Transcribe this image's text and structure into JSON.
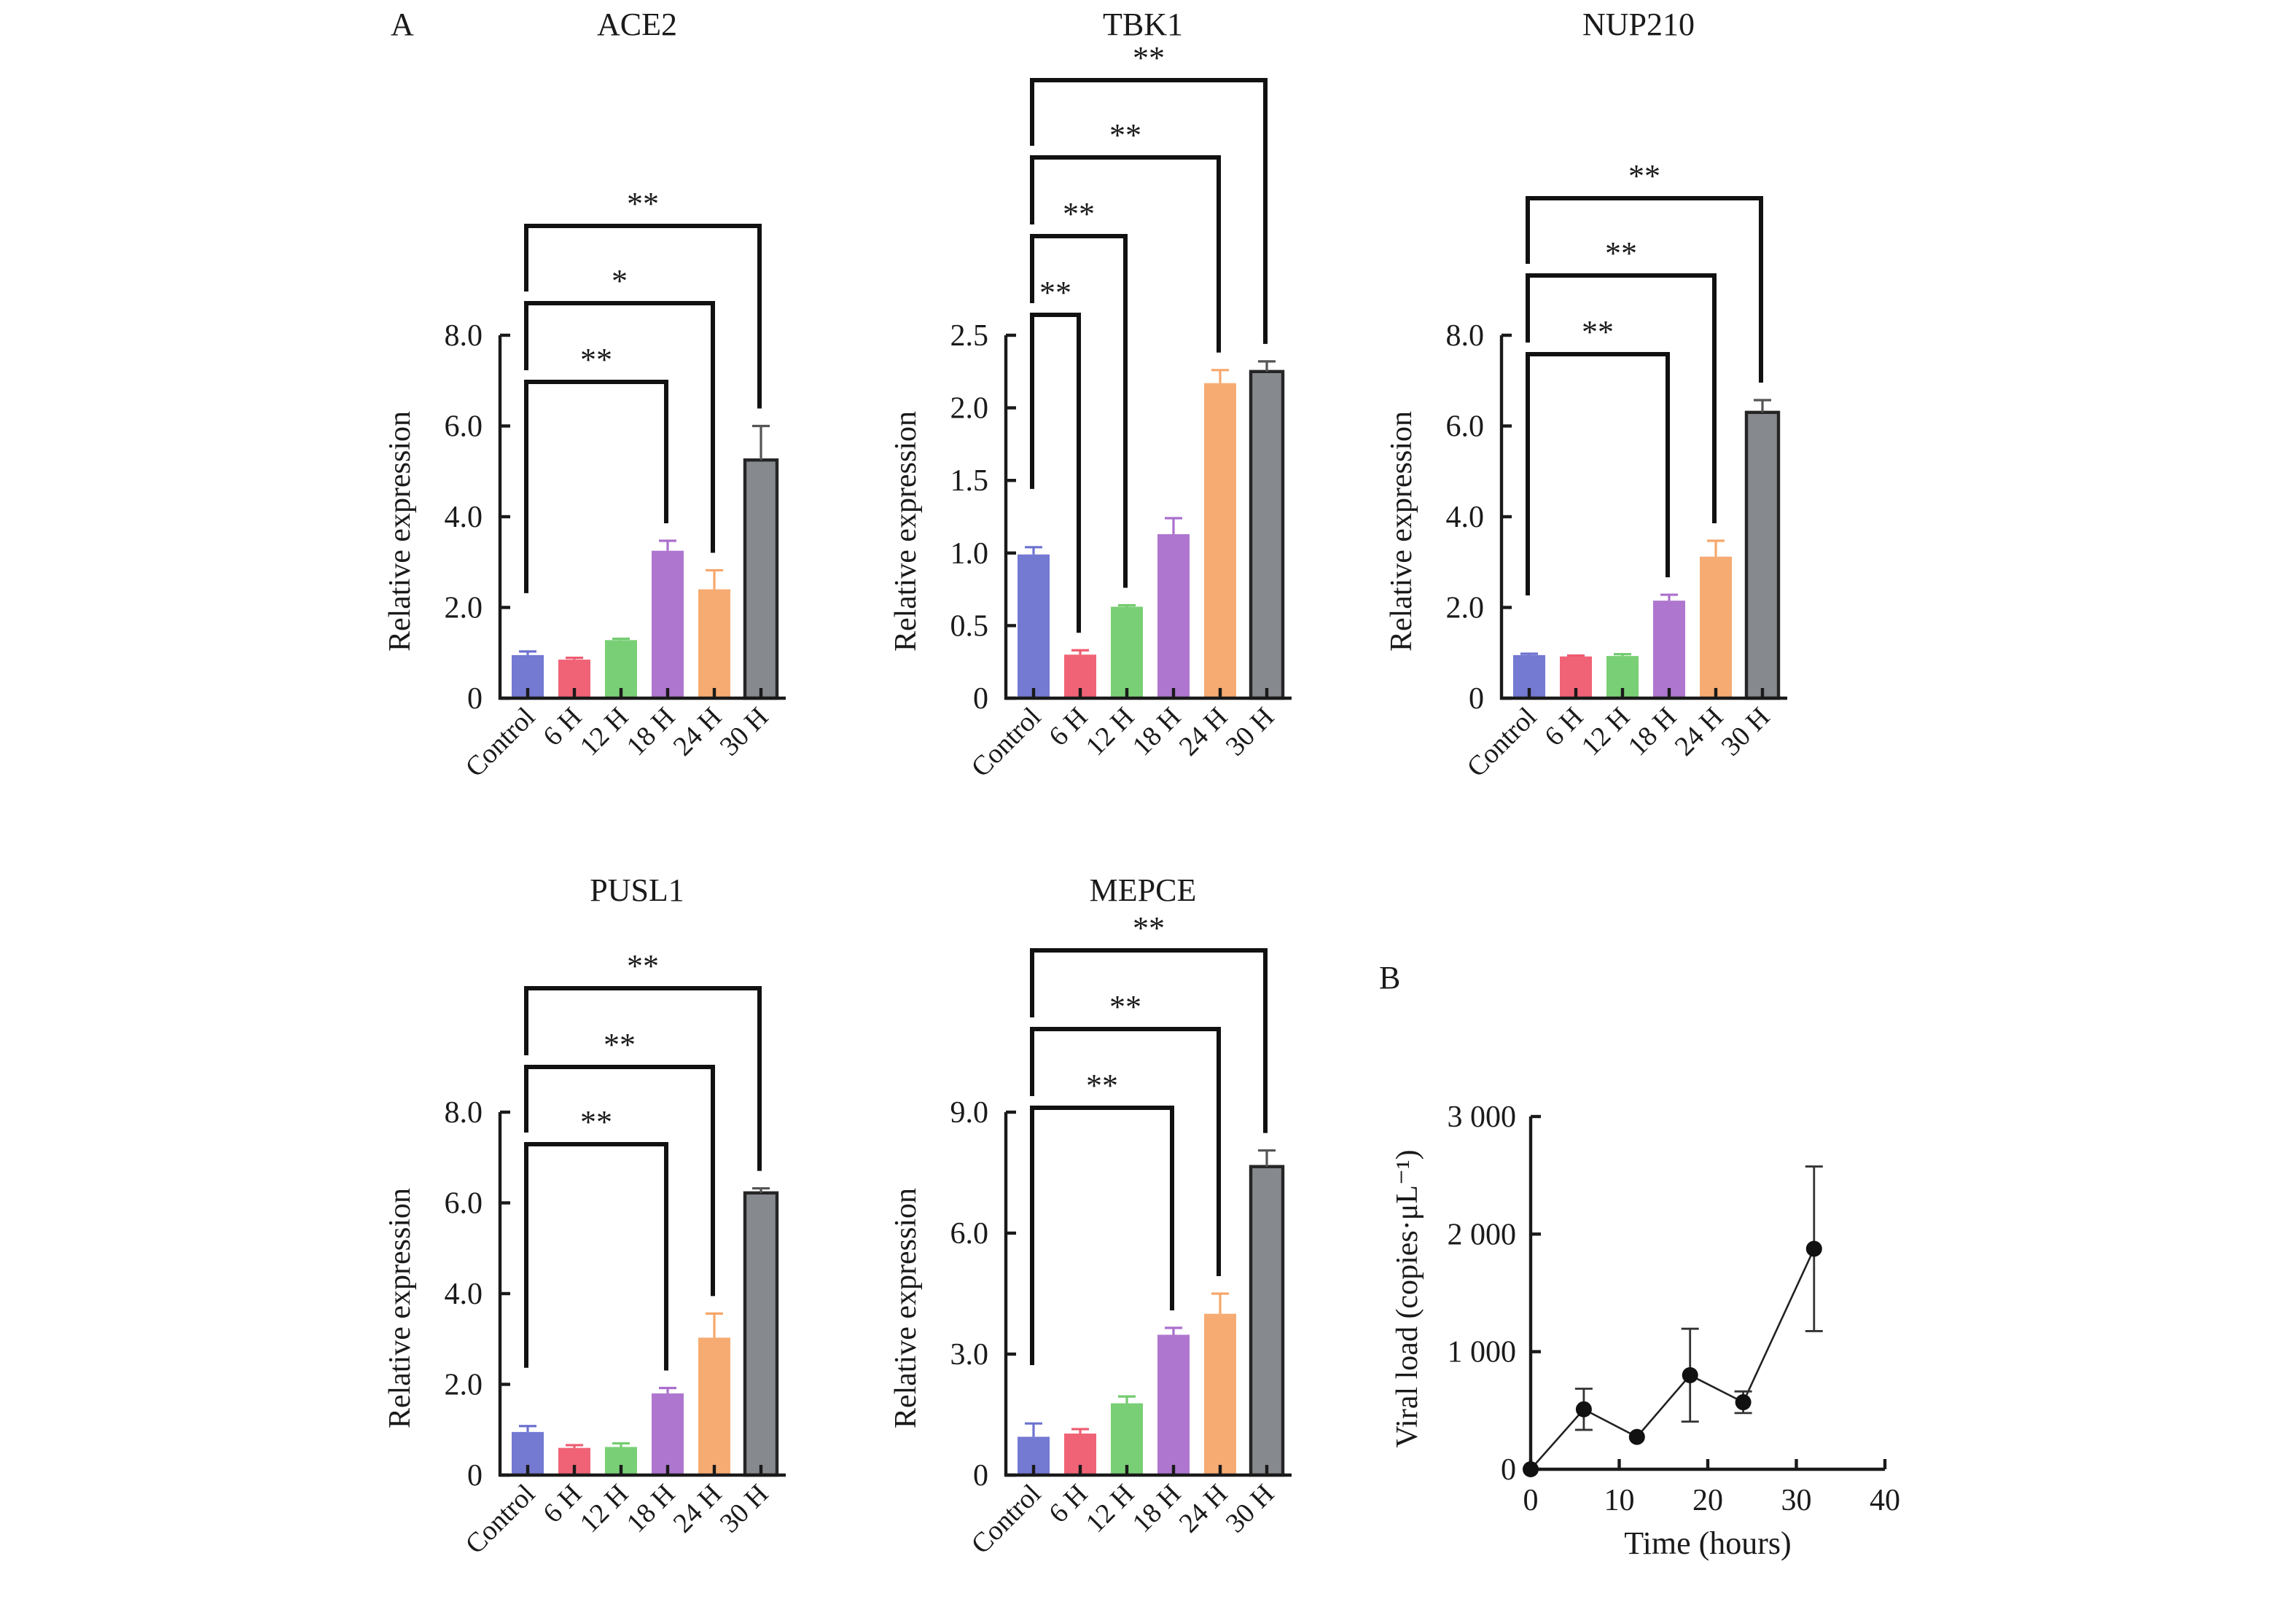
{
  "chart_data": [
    {
      "type": "bar",
      "panel": "A",
      "title": "ACE2",
      "ylabel": "Relative expression",
      "xlabel": "",
      "categories": [
        "Control",
        "6 H",
        "12 H",
        "18 H",
        "24 H",
        "30 H"
      ],
      "values": [
        0.95,
        0.85,
        1.28,
        3.25,
        2.4,
        5.25
      ],
      "errors": [
        0.08,
        0.04,
        0.03,
        0.22,
        0.42,
        0.75
      ],
      "ylim": [
        0,
        8.0
      ],
      "yticks": [
        "0",
        "2.0",
        "4.0",
        "6.0",
        "8.0"
      ],
      "ytick_values": [
        0,
        2,
        4,
        6,
        8
      ],
      "significance": [
        {
          "from": "Control",
          "to": "18 H",
          "label": "**"
        },
        {
          "from": "Control",
          "to": "24 H",
          "label": "*"
        },
        {
          "from": "Control",
          "to": "30 H",
          "label": "**"
        }
      ]
    },
    {
      "type": "bar",
      "title": "TBK1",
      "ylabel": "Relative expression",
      "xlabel": "",
      "categories": [
        "Control",
        "6 H",
        "12 H",
        "18 H",
        "24 H",
        "30 H"
      ],
      "values": [
        0.99,
        0.3,
        0.63,
        1.13,
        2.17,
        2.25
      ],
      "errors": [
        0.05,
        0.03,
        0.01,
        0.11,
        0.09,
        0.07
      ],
      "ylim": [
        0,
        2.5
      ],
      "yticks": [
        "0",
        "0.5",
        "1.0",
        "1.5",
        "2.0",
        "2.5"
      ],
      "ytick_values": [
        0,
        0.5,
        1.0,
        1.5,
        2.0,
        2.5
      ],
      "significance": [
        {
          "from": "Control",
          "to": "6 H",
          "label": "**"
        },
        {
          "from": "Control",
          "to": "12 H",
          "label": "**"
        },
        {
          "from": "Control",
          "to": "24 H",
          "label": "**"
        },
        {
          "from": "Control",
          "to": "30 H",
          "label": "**"
        }
      ]
    },
    {
      "type": "bar",
      "title": "NUP210",
      "ylabel": "Relative expression",
      "xlabel": "",
      "categories": [
        "Control",
        "6 H",
        "12 H",
        "18 H",
        "24 H",
        "30 H"
      ],
      "values": [
        0.95,
        0.92,
        0.93,
        2.15,
        3.12,
        6.3
      ],
      "errors": [
        0.03,
        0.02,
        0.04,
        0.13,
        0.35,
        0.27
      ],
      "ylim": [
        0,
        8.0
      ],
      "yticks": [
        "0",
        "2.0",
        "4.0",
        "6.0",
        "8.0"
      ],
      "ytick_values": [
        0,
        2,
        4,
        6,
        8
      ],
      "significance": [
        {
          "from": "Control",
          "to": "18 H",
          "label": "**"
        },
        {
          "from": "Control",
          "to": "24 H",
          "label": "**"
        },
        {
          "from": "Control",
          "to": "30 H",
          "label": "**"
        }
      ]
    },
    {
      "type": "bar",
      "title": "PUSL1",
      "ylabel": "Relative expression",
      "xlabel": "",
      "categories": [
        "Control",
        "6 H",
        "12 H",
        "18 H",
        "24 H",
        "30 H"
      ],
      "values": [
        0.95,
        0.6,
        0.62,
        1.8,
        3.03,
        6.22
      ],
      "errors": [
        0.13,
        0.06,
        0.08,
        0.12,
        0.53,
        0.1
      ],
      "ylim": [
        0,
        8.0
      ],
      "yticks": [
        "0",
        "2.0",
        "4.0",
        "6.0",
        "8.0"
      ],
      "ytick_values": [
        0,
        2,
        4,
        6,
        8
      ],
      "significance": [
        {
          "from": "Control",
          "to": "18 H",
          "label": "**"
        },
        {
          "from": "Control",
          "to": "24 H",
          "label": "**"
        },
        {
          "from": "Control",
          "to": "30 H",
          "label": "**"
        }
      ]
    },
    {
      "type": "bar",
      "title": "MEPCE",
      "ylabel": "Relative expression",
      "xlabel": "",
      "categories": [
        "Control",
        "6 H",
        "12 H",
        "18 H",
        "24 H",
        "30 H"
      ],
      "values": [
        0.95,
        1.03,
        1.78,
        3.48,
        4.0,
        7.65
      ],
      "errors": [
        0.33,
        0.11,
        0.17,
        0.17,
        0.5,
        0.4
      ],
      "ylim": [
        0,
        9.0
      ],
      "yticks": [
        "0",
        "3.0",
        "6.0",
        "9.0"
      ],
      "ytick_values": [
        0,
        3,
        6,
        9
      ],
      "significance": [
        {
          "from": "Control",
          "to": "18 H",
          "label": "**"
        },
        {
          "from": "Control",
          "to": "24 H",
          "label": "**"
        },
        {
          "from": "Control",
          "to": "30 H",
          "label": "**"
        }
      ]
    },
    {
      "type": "line",
      "panel": "B",
      "title": "",
      "xlabel": "Time (hours)",
      "ylabel": "Viral load (copies·μL⁻¹)",
      "x": [
        0,
        6,
        12,
        18,
        24,
        32
      ],
      "y": [
        0,
        510,
        275,
        800,
        570,
        1875
      ],
      "y_err": [
        0,
        175,
        0,
        395,
        92,
        700
      ],
      "xlim": [
        0,
        40
      ],
      "ylim": [
        0,
        3000
      ],
      "xticks": [
        "0",
        "10",
        "20",
        "30",
        "40"
      ],
      "xtick_values": [
        0,
        10,
        20,
        30,
        40
      ],
      "yticks": [
        "0",
        "1 000",
        "2 000",
        "3 000"
      ],
      "ytick_values": [
        0,
        1000,
        2000,
        3000
      ],
      "grid": false,
      "marker": "filled-circle"
    }
  ],
  "panel_labels": [
    "A",
    "B"
  ],
  "colors": {
    "bars": [
      "#6d72d0",
      "#ef5b70",
      "#72cc6e",
      "#aa6fcc",
      "#f6a66a",
      "#808388"
    ],
    "bar_errors": [
      "#6d72d0",
      "#ef5b70",
      "#72cc6e",
      "#aa6fcc",
      "#f6a66a",
      "#555555"
    ],
    "bar_outline_last": "#1a1a1a",
    "ink": "#1a1a1a"
  }
}
